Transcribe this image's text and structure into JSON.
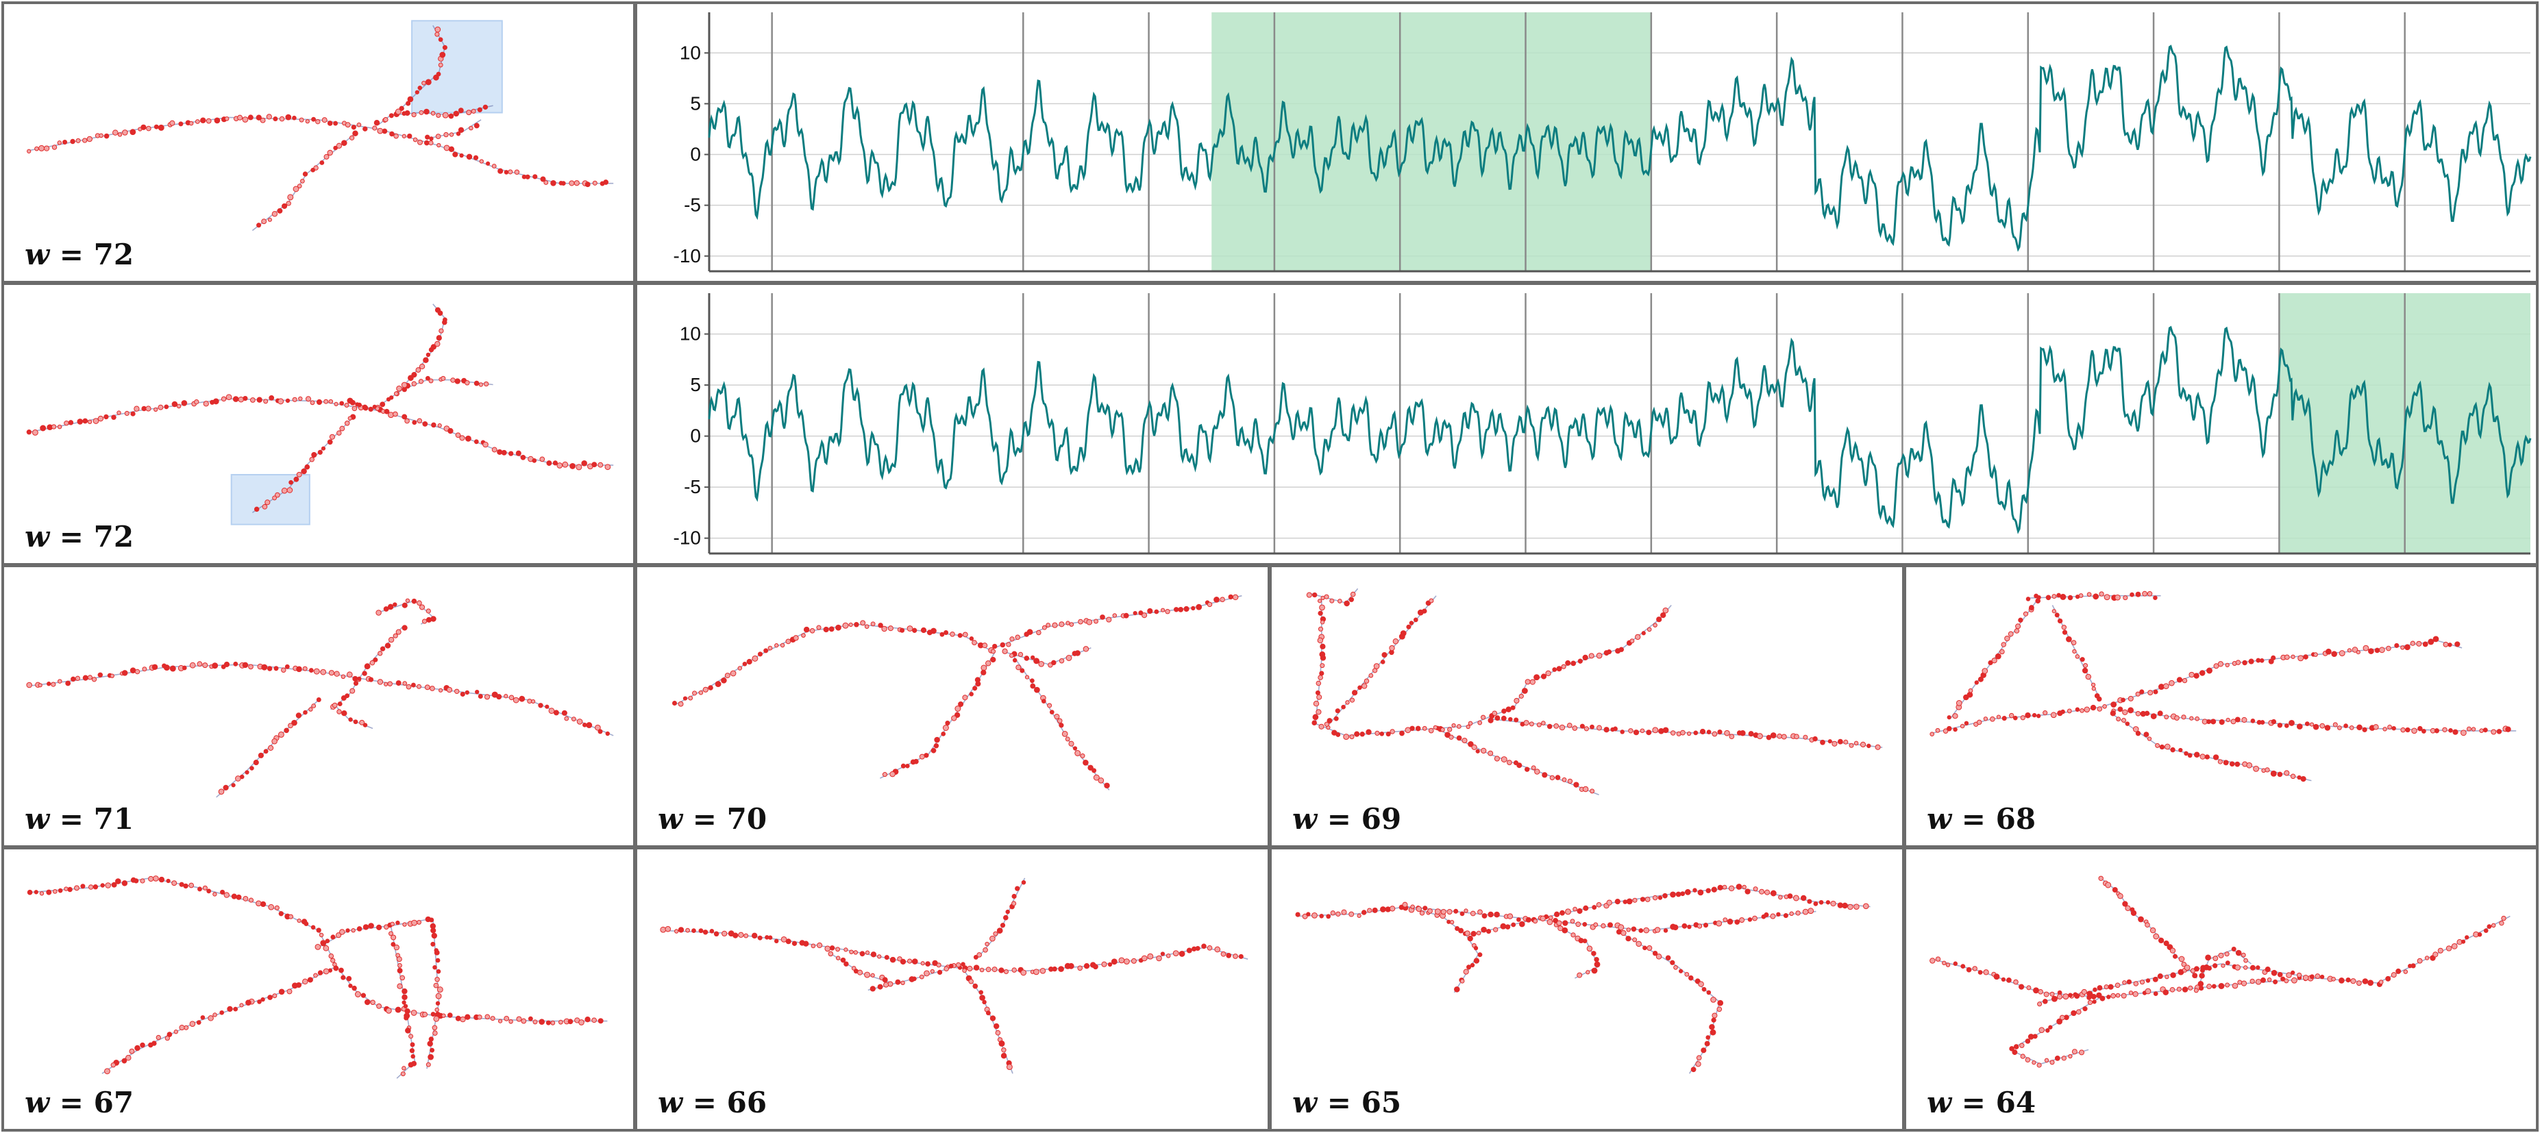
{
  "colors": {
    "series_line": "#0d7d80",
    "highlight_fill": "#b7e4c7",
    "graph_node": "#e02b2b",
    "graph_edge": "#7b88b8",
    "selection_box": "#cfe2f7",
    "frame": "#6b6b6b",
    "vertical_grid": "#8a8a8a"
  },
  "rows": [
    {
      "w_var": "w",
      "w_eq": " = ",
      "w_value": "72",
      "selection": "top-right cluster",
      "highlight_segment": [
        4,
        7.5
      ]
    },
    {
      "w_var": "w",
      "w_eq": " = ",
      "w_value": "72",
      "selection": "bottom-left cluster",
      "highlight_segment": [
        12.5,
        14.5
      ]
    }
  ],
  "chart_data": [
    {
      "type": "line",
      "series": [
        {
          "color": "#0d7d80"
        }
      ],
      "x": [
        0,
        14.5
      ],
      "ylim": [
        -11.5,
        14
      ],
      "yticks": [
        "10",
        "5",
        "0",
        "-5",
        "-10"
      ],
      "ytick_values": [
        10,
        5,
        0,
        -5,
        -10
      ],
      "vertical_gridlines_at": [
        0.5,
        2.5,
        3.5,
        4.5,
        5.5,
        6.5,
        7.5,
        8.5,
        9.5,
        10.5,
        11.5,
        12.5,
        13.5
      ],
      "highlight_x": [
        4,
        7.5
      ],
      "grid": true
    },
    {
      "type": "line",
      "series": [
        {
          "color": "#0d7d80"
        }
      ],
      "x": [
        0,
        14.5
      ],
      "ylim": [
        -11.5,
        14
      ],
      "yticks": [
        "10",
        "5",
        "0",
        "-5",
        "-10"
      ],
      "ytick_values": [
        10,
        5,
        0,
        -5,
        -10
      ],
      "vertical_gridlines_at": [
        0.5,
        2.5,
        3.5,
        4.5,
        5.5,
        6.5,
        7.5,
        8.5,
        9.5,
        10.5,
        11.5,
        12.5,
        13.5
      ],
      "highlight_x": [
        12.5,
        14.5
      ],
      "grid": true
    }
  ],
  "graph_panels": [
    {
      "w_var": "w",
      "w_eq": " = ",
      "w_value": "71"
    },
    {
      "w_var": "w",
      "w_eq": " = ",
      "w_value": "70"
    },
    {
      "w_var": "w",
      "w_eq": " = ",
      "w_value": "69"
    },
    {
      "w_var": "w",
      "w_eq": " = ",
      "w_value": "68"
    },
    {
      "w_var": "w",
      "w_eq": " = ",
      "w_value": "67"
    },
    {
      "w_var": "w",
      "w_eq": " = ",
      "w_value": "66"
    },
    {
      "w_var": "w",
      "w_eq": " = ",
      "w_value": "65"
    },
    {
      "w_var": "w",
      "w_eq": " = ",
      "w_value": "64"
    }
  ]
}
